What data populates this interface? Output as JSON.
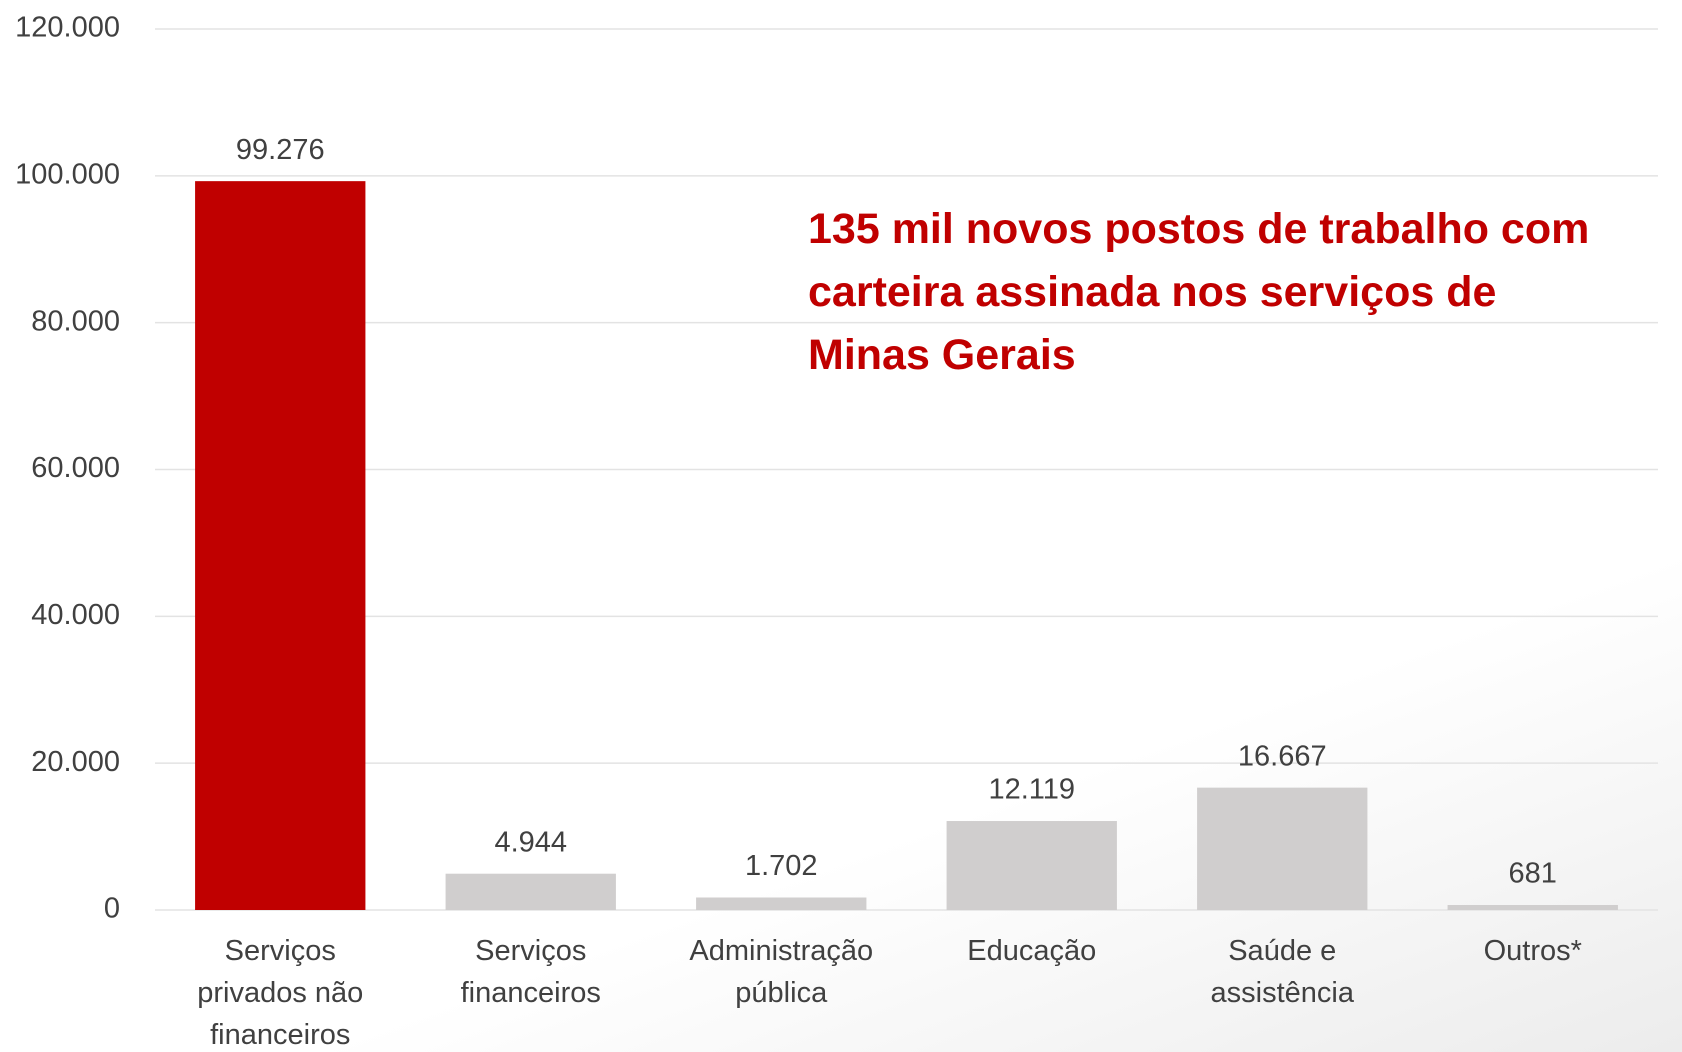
{
  "chart_data": {
    "type": "bar",
    "categories": [
      "Serviços\nprivados não\nfinanceiros",
      "Serviços\nfinanceiros",
      "Administração\npública",
      "Educação",
      "Saúde e\nassistência",
      "Outros*"
    ],
    "values": [
      99276,
      4944,
      1702,
      12119,
      16667,
      681
    ],
    "value_labels": [
      "99.276",
      "4.944",
      "1.702",
      "12.119",
      "16.667",
      "681"
    ],
    "colors": [
      "#c00000",
      "#d0cece",
      "#d0cece",
      "#d0cece",
      "#d0cece",
      "#d0cece"
    ],
    "ylim": [
      0,
      120000
    ],
    "yticks": [
      0,
      {
        "value": 20000,
        "label": "20.000"
      },
      {
        "value": 40000,
        "label": "40.000"
      },
      {
        "value": 60000,
        "label": "60.000"
      },
      {
        "value": 80000,
        "label": "80.000"
      },
      {
        "value": 100000,
        "label": "100.000"
      },
      {
        "value": 120000,
        "label": "120.000"
      }
    ],
    "grid": true,
    "annotations": [
      "135 mil novos postos de trabalho com\ncarteira assinada nos serviços de\nMinas Gerais"
    ]
  }
}
